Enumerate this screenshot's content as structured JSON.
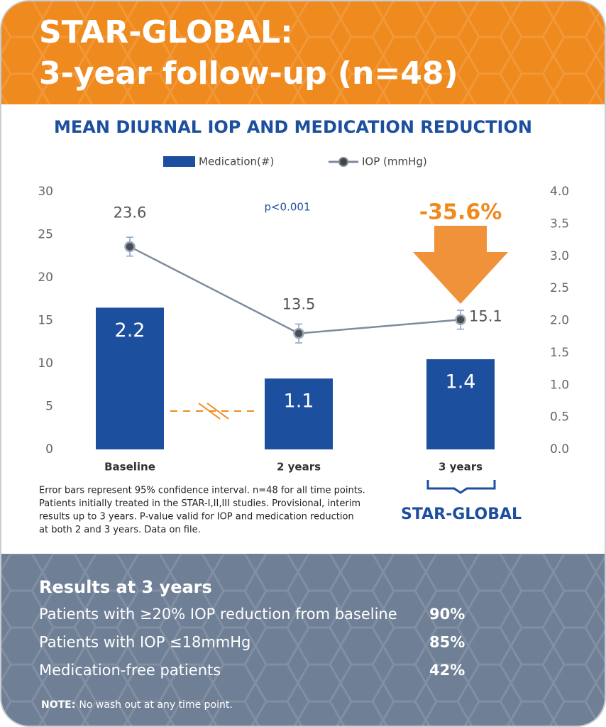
{
  "header": {
    "title_lines": [
      "STAR-GLOBAL:",
      "3-year follow-up (n=48)"
    ]
  },
  "chart_data": {
    "type": "bar",
    "title": "MEAN DIURNAL IOP AND MEDICATION REDUCTION",
    "categories": [
      "Baseline",
      "2 years",
      "3 years"
    ],
    "series": [
      {
        "name": "Medication(#)",
        "type": "bar",
        "axis": "y2",
        "color": "#1d4f9f",
        "values": [
          2.2,
          1.1,
          1.4
        ]
      },
      {
        "name": "IOP (mmHg)",
        "type": "line",
        "color": "#7d8b9c",
        "values": [
          23.6,
          13.5,
          15.1
        ],
        "errors": [
          1.1,
          1.1,
          1.1
        ]
      }
    ],
    "ylim": [
      0,
      30
    ],
    "yticks": [
      0,
      5,
      10,
      15,
      20,
      25,
      30
    ],
    "y2lim": [
      0,
      4
    ],
    "y2ticks": [
      {
        "value": 0,
        "label": "0.0"
      },
      {
        "value": 0.5,
        "label": "0.5"
      },
      {
        "value": 1,
        "label": "1.0"
      },
      {
        "value": 1.5,
        "label": "1.5"
      },
      {
        "value": 2,
        "label": "2.0"
      },
      {
        "value": 2.5,
        "label": "2.5"
      },
      {
        "value": 3,
        "label": "3.0"
      },
      {
        "value": 3.5,
        "label": "3.5"
      },
      {
        "value": 4,
        "label": "4.0"
      }
    ],
    "grid": false,
    "legend": "top",
    "annotations": {
      "p_value": "p<0.001",
      "reduction": "-35.6%",
      "group_label": "STAR-GLOBAL"
    }
  },
  "footnote_lines": [
    "Error bars represent 95% confidence interval. n=48 for all time points.",
    "Patients initially treated in the STAR-I,II,III studies. Provisional, interim",
    "results up to 3 years. P-value valid for IOP and medication reduction",
    "at both 2 and 3 years. Data on file."
  ],
  "results": {
    "title": "Results at 3 years",
    "rows": [
      {
        "label": "Patients with ≥20% IOP reduction from baseline",
        "value": "90%"
      },
      {
        "label": "Patients with IOP ≤18mmHg",
        "value": "85%"
      },
      {
        "label": "Medication-free patients",
        "value": "42%"
      }
    ],
    "note_label": "NOTE:",
    "note": "No wash out at any time point."
  }
}
